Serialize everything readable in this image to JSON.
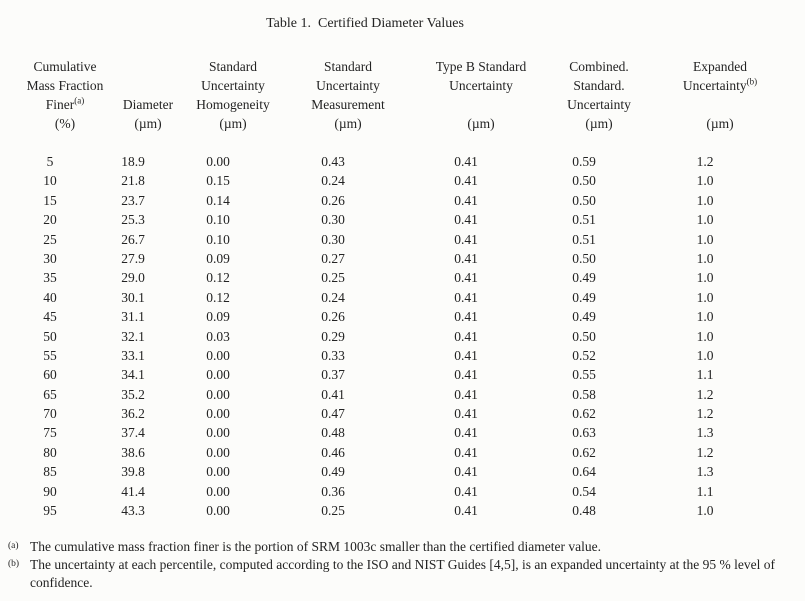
{
  "page": {
    "background_color": "#fcfcfa",
    "text_color": "#232323"
  },
  "title": "Table 1.  Certified Diameter Values",
  "table": {
    "columns": [
      {
        "name": "cumulative-mass-fraction-finer",
        "lines": [
          "Cumulative",
          "Mass Fraction",
          "Finer^(a)",
          "(%)"
        ]
      },
      {
        "name": "diameter",
        "lines": [
          "",
          "",
          "Diameter",
          "(µm)"
        ]
      },
      {
        "name": "standard-uncertainty-homogeneity",
        "lines": [
          "Standard",
          "Uncertainty",
          "Homogeneity",
          "(µm)"
        ]
      },
      {
        "name": "standard-uncertainty-measurement",
        "lines": [
          "Standard",
          "Uncertainty",
          "Measurement",
          "(µm)"
        ]
      },
      {
        "name": "type-b-standard-uncertainty",
        "lines": [
          "Type B Standard",
          "Uncertainty",
          "",
          "(µm)"
        ]
      },
      {
        "name": "combined-standard-uncertainty",
        "lines": [
          "Combined.",
          "Standard.",
          "Uncertainty",
          "(µm)"
        ]
      },
      {
        "name": "expanded-uncertainty",
        "lines": [
          "Expanded",
          "Uncertainty^(b)",
          "",
          "(µm)"
        ]
      }
    ],
    "rows": [
      [
        "5",
        "18.9",
        "0.00",
        "0.43",
        "0.41",
        "0.59",
        "1.2"
      ],
      [
        "10",
        "21.8",
        "0.15",
        "0.24",
        "0.41",
        "0.50",
        "1.0"
      ],
      [
        "15",
        "23.7",
        "0.14",
        "0.26",
        "0.41",
        "0.50",
        "1.0"
      ],
      [
        "20",
        "25.3",
        "0.10",
        "0.30",
        "0.41",
        "0.51",
        "1.0"
      ],
      [
        "25",
        "26.7",
        "0.10",
        "0.30",
        "0.41",
        "0.51",
        "1.0"
      ],
      [
        "30",
        "27.9",
        "0.09",
        "0.27",
        "0.41",
        "0.50",
        "1.0"
      ],
      [
        "35",
        "29.0",
        "0.12",
        "0.25",
        "0.41",
        "0.49",
        "1.0"
      ],
      [
        "40",
        "30.1",
        "0.12",
        "0.24",
        "0.41",
        "0.49",
        "1.0"
      ],
      [
        "45",
        "31.1",
        "0.09",
        "0.26",
        "0.41",
        "0.49",
        "1.0"
      ],
      [
        "50",
        "32.1",
        "0.03",
        "0.29",
        "0.41",
        "0.50",
        "1.0"
      ],
      [
        "55",
        "33.1",
        "0.00",
        "0.33",
        "0.41",
        "0.52",
        "1.0"
      ],
      [
        "60",
        "34.1",
        "0.00",
        "0.37",
        "0.41",
        "0.55",
        "1.1"
      ],
      [
        "65",
        "35.2",
        "0.00",
        "0.41",
        "0.41",
        "0.58",
        "1.2"
      ],
      [
        "70",
        "36.2",
        "0.00",
        "0.47",
        "0.41",
        "0.62",
        "1.2"
      ],
      [
        "75",
        "37.4",
        "0.00",
        "0.48",
        "0.41",
        "0.63",
        "1.3"
      ],
      [
        "80",
        "38.6",
        "0.00",
        "0.46",
        "0.41",
        "0.62",
        "1.2"
      ],
      [
        "85",
        "39.8",
        "0.00",
        "0.49",
        "0.41",
        "0.64",
        "1.3"
      ],
      [
        "90",
        "41.4",
        "0.00",
        "0.36",
        "0.41",
        "0.54",
        "1.1"
      ],
      [
        "95",
        "43.3",
        "0.00",
        "0.25",
        "0.41",
        "0.48",
        "1.0"
      ]
    ]
  },
  "footnotes": [
    {
      "marker": "(a)",
      "text": "The cumulative mass fraction finer is the portion of SRM 1003c smaller than the certified diameter value."
    },
    {
      "marker": "(b)",
      "text": "The uncertainty at each percentile, computed according to the ISO and NIST Guides [4,5], is an expanded uncertainty at the 95 % level of confidence."
    }
  ]
}
